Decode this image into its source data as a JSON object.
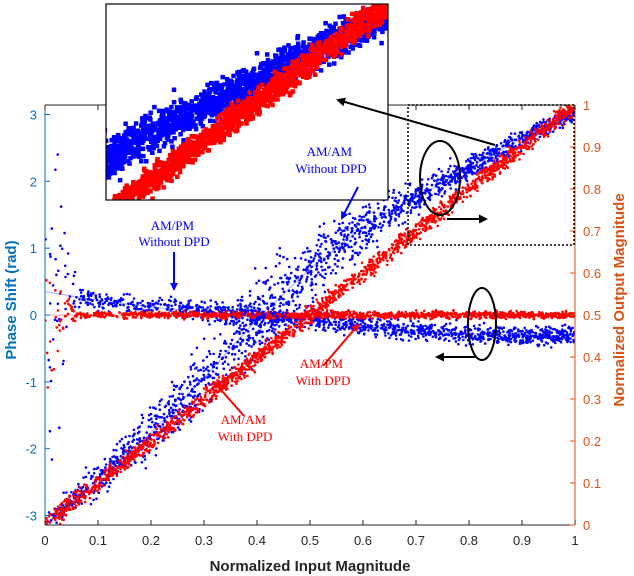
{
  "chart_data": {
    "type": "scatter",
    "title": "",
    "xlabel": "Normalized Input Magnitude",
    "ylabel_left": "Phase Shift (rad)",
    "ylabel_right": "Normalized Output Magnitude",
    "xlim": [
      0,
      1
    ],
    "ylim_left": [
      -3.14159,
      3.14159
    ],
    "ylim_right": [
      0,
      1
    ],
    "grid": false,
    "x_ticks": [
      "0",
      "0.1",
      "0.2",
      "0.3",
      "0.4",
      "0.5",
      "0.6",
      "0.7",
      "0.8",
      "0.9",
      "1"
    ],
    "y_left_ticks": [
      "-3",
      "-2",
      "-1",
      "0",
      "1",
      "2",
      "3"
    ],
    "y_right_ticks": [
      "0",
      "0.1",
      "0.2",
      "0.3",
      "0.4",
      "0.5",
      "0.6",
      "0.7",
      "0.8",
      "0.9",
      "1"
    ],
    "colors": {
      "without_dpd": "#0000FF",
      "with_dpd": "#FF0000",
      "left_axis": "#0072BD",
      "right_axis": "#D95319"
    },
    "series": [
      {
        "name": "AM/AM Without DPD",
        "axis": "right",
        "color": "#0000FF",
        "x": [
          0.0,
          0.1,
          0.2,
          0.3,
          0.4,
          0.5,
          0.6,
          0.7,
          0.8,
          0.9,
          1.0
        ],
        "y": [
          0.0,
          0.11,
          0.22,
          0.35,
          0.49,
          0.61,
          0.71,
          0.78,
          0.85,
          0.92,
          0.98
        ]
      },
      {
        "name": "AM/PM Without DPD",
        "axis": "left",
        "color": "#0000FF",
        "x": [
          0.0,
          0.1,
          0.2,
          0.3,
          0.4,
          0.5,
          0.6,
          0.7,
          0.8,
          0.9,
          1.0
        ],
        "y": [
          0.35,
          0.22,
          0.12,
          0.05,
          0.0,
          -0.08,
          -0.17,
          -0.24,
          -0.28,
          -0.3,
          -0.31
        ]
      },
      {
        "name": "AM/AM With DPD",
        "axis": "right",
        "color": "#FF0000",
        "x": [
          0.0,
          0.1,
          0.2,
          0.3,
          0.4,
          0.5,
          0.6,
          0.7,
          0.8,
          0.9,
          1.0
        ],
        "y": [
          0.0,
          0.1,
          0.2,
          0.3,
          0.4,
          0.5,
          0.6,
          0.7,
          0.8,
          0.9,
          1.0
        ]
      },
      {
        "name": "AM/PM With DPD",
        "axis": "left",
        "color": "#FF0000",
        "x": [
          0.0,
          0.1,
          0.2,
          0.3,
          0.4,
          0.5,
          0.6,
          0.7,
          0.8,
          0.9,
          1.0
        ],
        "y": [
          0.0,
          0.0,
          0.0,
          0.0,
          0.0,
          0.0,
          0.0,
          0.0,
          0.0,
          0.0,
          0.0
        ]
      }
    ],
    "annotations": [
      {
        "lines": [
          "AM/AM",
          "Without DPD"
        ],
        "color": "#0000FF"
      },
      {
        "lines": [
          "AM/PM",
          "Without DPD"
        ],
        "color": "#0000FF"
      },
      {
        "lines": [
          "AM/PM",
          "With DPD"
        ],
        "color": "#FF0000"
      },
      {
        "lines": [
          "AM/AM",
          "With DPD"
        ],
        "color": "#FF0000"
      }
    ],
    "inset": {
      "shows": "zoomed view of upper-right region",
      "x_range": [
        0.69,
        1.0
      ],
      "y_right_range": [
        0.71,
        1.0
      ]
    }
  }
}
